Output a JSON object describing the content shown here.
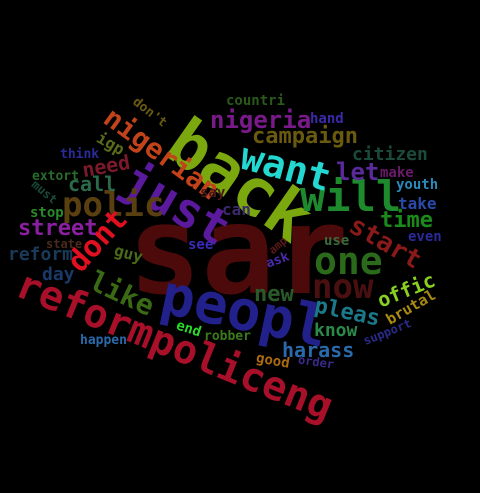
{
  "words": [
    {
      "text": "sar",
      "color": "#4d0a0a"
    },
    {
      "text": "back",
      "color": "#7aa80e"
    },
    {
      "text": "reformpoliceng",
      "color": "#a8102a"
    },
    {
      "text": "peopl",
      "color": "#22208a"
    },
    {
      "text": "just",
      "color": "#5b1a9e"
    },
    {
      "text": "will",
      "color": "#1e8a2e"
    },
    {
      "text": "want",
      "color": "#22d8d0"
    },
    {
      "text": "one",
      "color": "#2a6a1a"
    },
    {
      "text": "now",
      "color": "#4a1010"
    },
    {
      "text": "nigerian",
      "color": "#c2421a"
    },
    {
      "text": "polic",
      "color": "#5a4010"
    },
    {
      "text": "dont",
      "color": "#e01020"
    },
    {
      "text": "like",
      "color": "#3a6a14"
    },
    {
      "text": "nigeria",
      "color": "#7a1a8a"
    },
    {
      "text": "campaign",
      "color": "#6a5a10"
    },
    {
      "text": "start",
      "color": "#8a1a1a"
    },
    {
      "text": "pleas",
      "color": "#1a7a8a"
    },
    {
      "text": "street",
      "color": "#8a20a0"
    },
    {
      "text": "let",
      "color": "#5a2a9a"
    },
    {
      "text": "time",
      "color": "#1a8a1a"
    },
    {
      "text": "new",
      "color": "#2a5a2a"
    },
    {
      "text": "citizen",
      "color": "#1a4a3a"
    },
    {
      "text": "harass",
      "color": "#2a6aaa"
    },
    {
      "text": "offic",
      "color": "#8ad020"
    },
    {
      "text": "call",
      "color": "#2a6a4a"
    },
    {
      "text": "need",
      "color": "#7a1a2a"
    },
    {
      "text": "know",
      "color": "#2a8a4a"
    },
    {
      "text": "reform",
      "color": "#1a3a5a"
    },
    {
      "text": "day",
      "color": "#1a3a6a"
    },
    {
      "text": "guy",
      "color": "#4a6a1a"
    },
    {
      "text": "take",
      "color": "#2a4aaa"
    },
    {
      "text": "youth",
      "color": "#2a8aba"
    },
    {
      "text": "brutal",
      "color": "#aa8a10"
    },
    {
      "text": "igp",
      "color": "#5a6a1a"
    },
    {
      "text": "can",
      "color": "#3a2a6a"
    },
    {
      "text": "use",
      "color": "#3a6a3a"
    },
    {
      "text": "stop",
      "color": "#2a8a2a"
    },
    {
      "text": "extort",
      "color": "#2a6a2a"
    },
    {
      "text": "think",
      "color": "#2a2a9a"
    },
    {
      "text": "make",
      "color": "#6a1a6a"
    },
    {
      "text": "countri",
      "color": "#2a5a1a"
    },
    {
      "text": "hand",
      "color": "#3a2aaa"
    },
    {
      "text": "don't",
      "color": "#6a5a10"
    },
    {
      "text": "say",
      "color": "#4a1a1a"
    },
    {
      "text": "see",
      "color": "#3a2aba"
    },
    {
      "text": "even",
      "color": "#2a2a9a"
    },
    {
      "text": "ask",
      "color": "#4a2aaa"
    },
    {
      "text": "amp",
      "color": "#5a1a1a"
    },
    {
      "text": "end",
      "color": "#2ad82a"
    },
    {
      "text": "robber",
      "color": "#3a7a1a"
    },
    {
      "text": "happen",
      "color": "#2a6aaa"
    },
    {
      "text": "good",
      "color": "#aa6a10"
    },
    {
      "text": "order",
      "color": "#3a2a8a"
    },
    {
      "text": "support",
      "color": "#2a2a8a"
    },
    {
      "text": "state",
      "color": "#4a2a1a"
    },
    {
      "text": "must",
      "color": "#1a4a3a"
    }
  ]
}
